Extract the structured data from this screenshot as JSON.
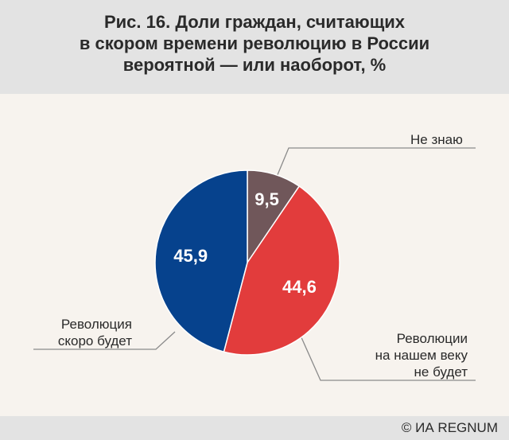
{
  "title": {
    "line1": "Рис. 16. Доли граждан, считающих",
    "line2": "в скором времени революцию в России",
    "line3": "вероятной — или наоборот, %"
  },
  "chart_data": {
    "type": "pie",
    "slices": [
      {
        "name": "Не знаю",
        "value": 9.5,
        "label": "9,5",
        "color": "#70575a"
      },
      {
        "name": "Революции на нашем веку не будет",
        "value": 44.6,
        "label": "44,6",
        "color": "#e23c3c"
      },
      {
        "name": "Революция скоро будет",
        "value": 45.9,
        "label": "45,9",
        "color": "#06428d"
      }
    ]
  },
  "labels": {
    "dont_know": "Не знаю",
    "no_rev": [
      "Революции",
      "на нашем веку",
      "не будет"
    ],
    "rev_soon": [
      "Революция",
      "скоро будет"
    ]
  },
  "footer": {
    "credit": "© ИА REGNUM"
  }
}
